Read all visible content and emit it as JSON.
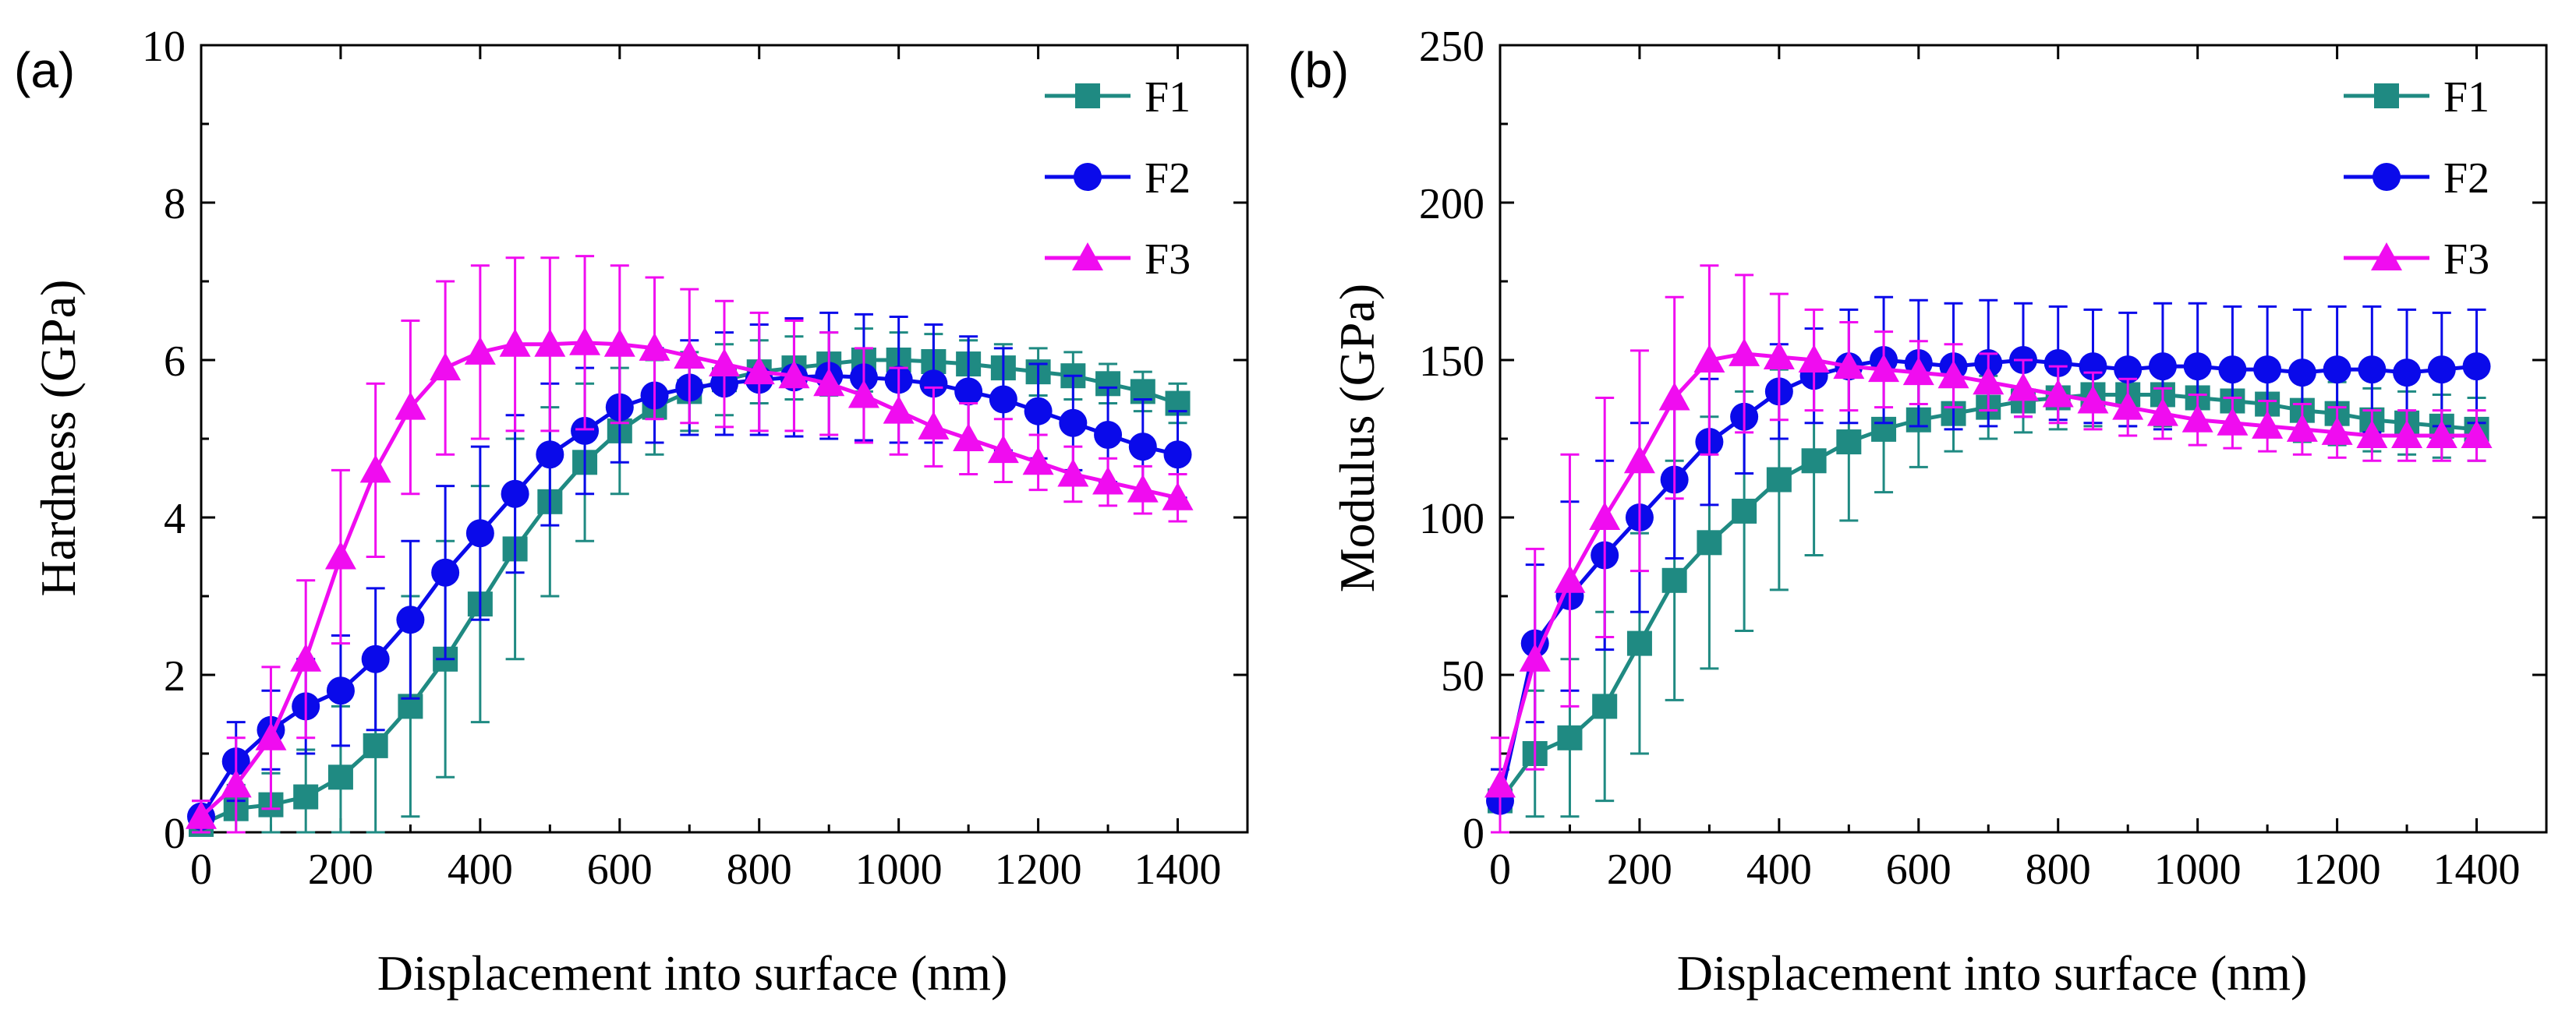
{
  "colors": {
    "F1": "#1f8a82",
    "F2": "#0a0aea",
    "F3": "#f00cf0"
  },
  "chart_data": [
    {
      "type": "line",
      "panel_label": "(a)",
      "xlabel": "Displacement into surface (nm)",
      "ylabel": "Hardness (GPa)",
      "xlim": [
        0,
        1500
      ],
      "ylim": [
        0,
        10
      ],
      "xticks": [
        0,
        200,
        400,
        600,
        800,
        1000,
        1200,
        1400
      ],
      "yticks": [
        0,
        2,
        4,
        6,
        8,
        10
      ],
      "legend_position": "top-right",
      "series": [
        {
          "name": "F1",
          "marker": "square",
          "x": [
            0,
            50,
            100,
            150,
            200,
            250,
            300,
            350,
            400,
            450,
            500,
            550,
            600,
            650,
            700,
            750,
            800,
            850,
            900,
            950,
            1000,
            1050,
            1100,
            1150,
            1200,
            1250,
            1300,
            1350,
            1400
          ],
          "y": [
            0.1,
            0.3,
            0.35,
            0.45,
            0.7,
            1.1,
            1.6,
            2.2,
            2.9,
            3.6,
            4.2,
            4.7,
            5.1,
            5.4,
            5.6,
            5.75,
            5.85,
            5.9,
            5.95,
            6.0,
            6.0,
            5.98,
            5.95,
            5.9,
            5.85,
            5.8,
            5.7,
            5.6,
            5.45
          ],
          "err": [
            0.1,
            0.3,
            0.4,
            0.6,
            0.9,
            1.2,
            1.4,
            1.5,
            1.5,
            1.4,
            1.2,
            1.0,
            0.8,
            0.6,
            0.5,
            0.45,
            0.4,
            0.4,
            0.4,
            0.4,
            0.35,
            0.35,
            0.3,
            0.3,
            0.3,
            0.3,
            0.25,
            0.25,
            0.25
          ]
        },
        {
          "name": "F2",
          "marker": "circle",
          "x": [
            0,
            50,
            100,
            150,
            200,
            250,
            300,
            350,
            400,
            450,
            500,
            550,
            600,
            650,
            700,
            750,
            800,
            850,
            900,
            950,
            1000,
            1050,
            1100,
            1150,
            1200,
            1250,
            1300,
            1350,
            1400
          ],
          "y": [
            0.2,
            0.9,
            1.3,
            1.6,
            1.8,
            2.2,
            2.7,
            3.3,
            3.8,
            4.3,
            4.8,
            5.1,
            5.4,
            5.55,
            5.65,
            5.7,
            5.75,
            5.78,
            5.8,
            5.78,
            5.75,
            5.7,
            5.6,
            5.5,
            5.35,
            5.2,
            5.05,
            4.9,
            4.8
          ],
          "err": [
            0.2,
            0.5,
            0.5,
            0.6,
            0.7,
            0.9,
            1.0,
            1.1,
            1.1,
            1.0,
            0.9,
            0.8,
            0.7,
            0.6,
            0.6,
            0.65,
            0.7,
            0.75,
            0.8,
            0.8,
            0.8,
            0.75,
            0.7,
            0.65,
            0.6,
            0.6,
            0.6,
            0.6,
            0.55
          ]
        },
        {
          "name": "F3",
          "marker": "triangle",
          "x": [
            0,
            50,
            100,
            150,
            200,
            250,
            300,
            350,
            400,
            450,
            500,
            550,
            600,
            650,
            700,
            750,
            800,
            850,
            900,
            950,
            1000,
            1050,
            1100,
            1150,
            1200,
            1250,
            1300,
            1350,
            1400
          ],
          "y": [
            0.2,
            0.6,
            1.2,
            2.2,
            3.5,
            4.6,
            5.4,
            5.9,
            6.1,
            6.2,
            6.2,
            6.22,
            6.2,
            6.15,
            6.05,
            5.95,
            5.85,
            5.8,
            5.7,
            5.55,
            5.35,
            5.15,
            5.0,
            4.85,
            4.7,
            4.55,
            4.45,
            4.35,
            4.25
          ],
          "err": [
            0.2,
            0.6,
            0.9,
            1.0,
            1.1,
            1.1,
            1.1,
            1.1,
            1.1,
            1.1,
            1.1,
            1.1,
            1.0,
            0.9,
            0.85,
            0.8,
            0.75,
            0.7,
            0.65,
            0.6,
            0.55,
            0.5,
            0.45,
            0.4,
            0.35,
            0.35,
            0.3,
            0.3,
            0.3
          ]
        }
      ]
    },
    {
      "type": "line",
      "panel_label": "(b)",
      "xlabel": "Displacement into surface (nm)",
      "ylabel": "Modulus (GPa)",
      "xlim": [
        0,
        1500
      ],
      "ylim": [
        0,
        250
      ],
      "xticks": [
        0,
        200,
        400,
        600,
        800,
        1000,
        1200,
        1400
      ],
      "yticks": [
        0,
        50,
        100,
        150,
        200,
        250
      ],
      "legend_position": "top-right",
      "series": [
        {
          "name": "F1",
          "marker": "square",
          "x": [
            0,
            50,
            100,
            150,
            200,
            250,
            300,
            350,
            400,
            450,
            500,
            550,
            600,
            650,
            700,
            750,
            800,
            850,
            900,
            950,
            1000,
            1050,
            1100,
            1150,
            1200,
            1250,
            1300,
            1350,
            1400
          ],
          "y": [
            10,
            25,
            30,
            40,
            60,
            80,
            92,
            102,
            112,
            118,
            124,
            128,
            131,
            133,
            135,
            137,
            138,
            139,
            139,
            139,
            138,
            137,
            136,
            134,
            133,
            131,
            130,
            129,
            128
          ],
          "err": [
            10,
            20,
            25,
            30,
            35,
            38,
            40,
            38,
            35,
            30,
            25,
            20,
            15,
            12,
            10,
            10,
            10,
            10,
            10,
            10,
            10,
            10,
            10,
            10,
            10,
            10,
            10,
            10,
            10
          ]
        },
        {
          "name": "F2",
          "marker": "circle",
          "x": [
            0,
            50,
            100,
            150,
            200,
            250,
            300,
            350,
            400,
            450,
            500,
            550,
            600,
            650,
            700,
            750,
            800,
            850,
            900,
            950,
            1000,
            1050,
            1100,
            1150,
            1200,
            1250,
            1300,
            1350,
            1400
          ],
          "y": [
            10,
            60,
            75,
            88,
            100,
            112,
            124,
            132,
            140,
            145,
            148,
            150,
            149,
            148,
            149,
            150,
            149,
            148,
            147,
            148,
            148,
            147,
            147,
            146,
            147,
            147,
            146,
            147,
            148
          ],
          "err": [
            10,
            25,
            30,
            30,
            30,
            25,
            20,
            18,
            15,
            15,
            18,
            20,
            20,
            20,
            20,
            18,
            18,
            18,
            18,
            20,
            20,
            20,
            20,
            20,
            20,
            20,
            20,
            18,
            18
          ]
        },
        {
          "name": "F3",
          "marker": "triangle",
          "x": [
            0,
            50,
            100,
            150,
            200,
            250,
            300,
            350,
            400,
            450,
            500,
            550,
            600,
            650,
            700,
            750,
            800,
            850,
            900,
            950,
            1000,
            1050,
            1100,
            1150,
            1200,
            1250,
            1300,
            1350,
            1400
          ],
          "y": [
            15,
            55,
            80,
            100,
            118,
            138,
            150,
            152,
            151,
            150,
            148,
            147,
            146,
            145,
            143,
            141,
            139,
            137,
            135,
            133,
            131,
            130,
            129,
            128,
            127,
            126,
            126,
            126,
            126
          ],
          "err": [
            15,
            35,
            40,
            38,
            35,
            32,
            30,
            25,
            20,
            16,
            14,
            12,
            10,
            10,
            9,
            9,
            9,
            9,
            9,
            8,
            8,
            8,
            8,
            8,
            8,
            8,
            8,
            8,
            8
          ]
        }
      ]
    }
  ]
}
